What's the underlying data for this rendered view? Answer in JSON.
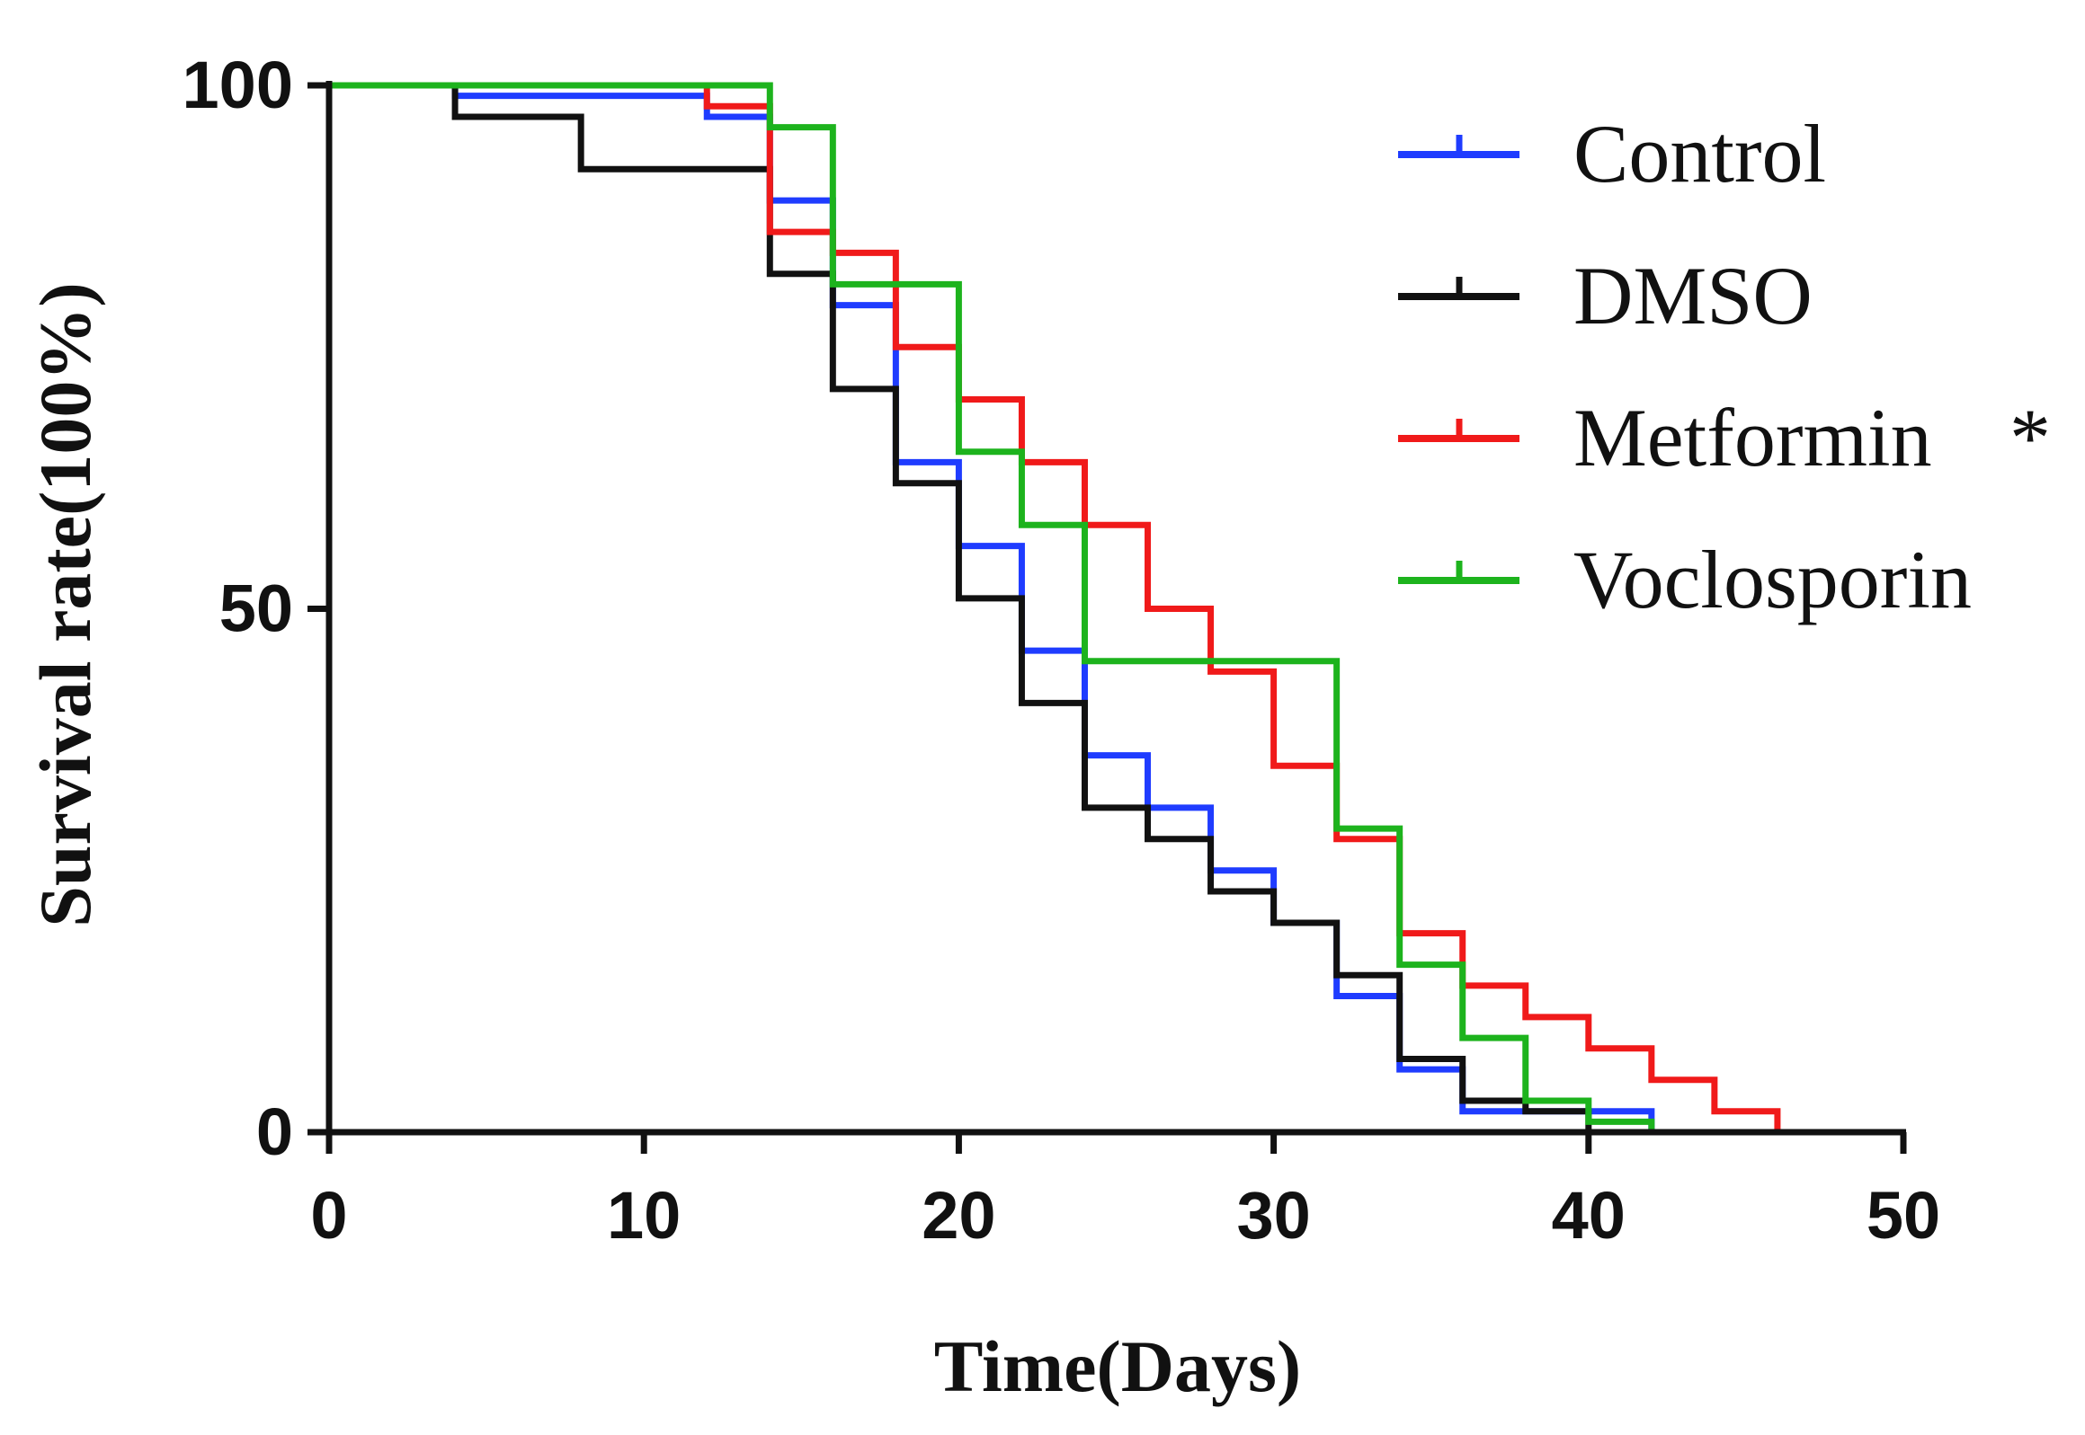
{
  "chart_data": {
    "type": "line",
    "subtype": "kaplan-meier-step",
    "title": "",
    "xlabel": "Time(Days)",
    "ylabel": "Survival rate(100%)",
    "xlim": [
      0,
      50
    ],
    "ylim": [
      0,
      100
    ],
    "xticks": [
      0,
      10,
      20,
      30,
      40,
      50
    ],
    "yticks": [
      0,
      50,
      100
    ],
    "legend_position": "top-right",
    "series": [
      {
        "name": "Control",
        "color": "#1f3cff",
        "points": [
          [
            0,
            100
          ],
          [
            4,
            99
          ],
          [
            12,
            97
          ],
          [
            14,
            89
          ],
          [
            16,
            79
          ],
          [
            18,
            64
          ],
          [
            20,
            56
          ],
          [
            22,
            46
          ],
          [
            24,
            36
          ],
          [
            26,
            31
          ],
          [
            28,
            25
          ],
          [
            30,
            20
          ],
          [
            32,
            13
          ],
          [
            34,
            6
          ],
          [
            36,
            2
          ],
          [
            40,
            2
          ],
          [
            42,
            0
          ]
        ]
      },
      {
        "name": "DMSO",
        "color": "#111111",
        "points": [
          [
            0,
            100
          ],
          [
            4,
            97
          ],
          [
            8,
            92
          ],
          [
            14,
            82
          ],
          [
            16,
            71
          ],
          [
            18,
            62
          ],
          [
            20,
            51
          ],
          [
            22,
            41
          ],
          [
            24,
            31
          ],
          [
            26,
            28
          ],
          [
            28,
            23
          ],
          [
            30,
            20
          ],
          [
            32,
            15
          ],
          [
            34,
            7
          ],
          [
            36,
            3
          ],
          [
            38,
            2
          ],
          [
            40,
            0
          ]
        ]
      },
      {
        "name": "Metformin",
        "annotation": "*",
        "color": "#f01a1a",
        "points": [
          [
            0,
            100
          ],
          [
            12,
            98
          ],
          [
            14,
            86
          ],
          [
            16,
            84
          ],
          [
            18,
            75
          ],
          [
            20,
            70
          ],
          [
            22,
            64
          ],
          [
            24,
            58
          ],
          [
            26,
            50
          ],
          [
            28,
            44
          ],
          [
            30,
            35
          ],
          [
            32,
            28
          ],
          [
            34,
            19
          ],
          [
            36,
            14
          ],
          [
            38,
            11
          ],
          [
            40,
            8
          ],
          [
            42,
            5
          ],
          [
            44,
            2
          ],
          [
            46,
            0
          ]
        ]
      },
      {
        "name": "Voclosporin",
        "color": "#1db31d",
        "points": [
          [
            0,
            100
          ],
          [
            12,
            100
          ],
          [
            14,
            96
          ],
          [
            16,
            81
          ],
          [
            20,
            65
          ],
          [
            22,
            58
          ],
          [
            24,
            45
          ],
          [
            32,
            29
          ],
          [
            34,
            16
          ],
          [
            36,
            9
          ],
          [
            38,
            3
          ],
          [
            40,
            1
          ],
          [
            42,
            0
          ]
        ]
      }
    ]
  }
}
